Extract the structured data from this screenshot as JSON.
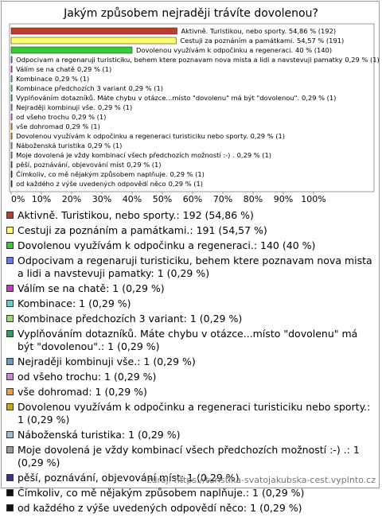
{
  "chart_data": {
    "type": "hbar",
    "title": "Jakým způsobem nejraději trávíte dovolenou?",
    "categories": [
      "Aktivně. Turistikou, nebo sporty.",
      "Cestuji za poznáním a památkami.",
      "Dovolenou využívám k odpočinku a regeneraci.",
      "Odpocivam a regenaruji turisticiku, behem ktere poznavam nova mista a lidi a navstevuji pamatky",
      "Válím se na chatě",
      "Kombinace",
      "Kombinace předchozích 3 variant",
      "Vyplňováním dotazníků. Máte chybu v otázce...místo \"dovolenu\" má být \"dovolenou\".",
      "Nejraději kombinuji vše.",
      "od všeho trochu",
      "vše dohromad",
      "Dovolenou využívám k odpočinku a regeneraci turisticiku nebo sporty.",
      "Náboženská turistika",
      "Moje dovolená je vždy kombinací všech předchozích možností :-) .",
      "pěší, poznávání, objevování míst",
      "Čímkoliv, co mě nějakým způsobem naplňuje.",
      "od každého z výše uvedených odpovědí něco"
    ],
    "values": [
      54.86,
      54.57,
      40,
      0.29,
      0.29,
      0.29,
      0.29,
      0.29,
      0.29,
      0.29,
      0.29,
      0.29,
      0.29,
      0.29,
      0.29,
      0.29,
      0.29
    ],
    "value_labels": [
      "54,86 % (192)",
      "54,57 % (191)",
      "40 % (140)",
      "0,29 % (1)",
      "0,29 % (1)",
      "0,29 % (1)",
      "0,29 % (1)",
      "0,29 % (1)",
      "0,29 % (1)",
      "0,29 % (1)",
      "0,29 % (1)",
      "0,29 % (1)",
      "0,29 % (1)",
      "0,29 % (1)",
      "0,29 % (1)",
      "0,29 % (1)",
      "0,29 % (1)"
    ],
    "legend_labels": [
      "Aktivně. Turistikou, nebo sporty.: 192 (54,86 %)",
      "Cestuji za poznáním a památkami.: 191 (54,57 %)",
      "Dovolenou využívám k odpočinku a regeneraci.: 140 (40 %)",
      "Odpocivam a regenaruji turisticiku, behem ktere poznavam nova mista a lidi a navstevuji pamatky: 1 (0,29 %)",
      "Válím se na chatě: 1 (0,29 %)",
      "Kombinace: 1 (0,29 %)",
      "Kombinace předchozích 3 variant: 1 (0,29 %)",
      "Vyplňováním dotazníků. Máte chybu v otázce...místo \"dovolenu\" má být \"dovolenou\".: 1 (0,29 %)",
      "Nejraději kombinuji vše.: 1 (0,29 %)",
      "od všeho trochu: 1 (0,29 %)",
      "vše dohromad: 1 (0,29 %)",
      "Dovolenou využívám k odpočinku a regeneraci turisticiku nebo sporty.: 1 (0,29 %)",
      "Náboženská turistika: 1 (0,29 %)",
      "Moje dovolená je vždy kombinací všech předchozích možností :-) .: 1 (0,29 %)",
      "pěší, poznávání, objevování míst: 1 (0,29 %)",
      "Čímkoliv, co mě nějakým způsobem naplňuje.: 1 (0,29 %)",
      "od každého z výše uvedených odpovědí něco: 1 (0,29 %)"
    ],
    "colors": [
      "#c0392b",
      "#ffff66",
      "#33cc33",
      "#6677ee",
      "#cc33cc",
      "#66cccc",
      "#99dd66",
      "#339966",
      "#6699cc",
      "#cc88cc",
      "#ff9933",
      "#ccaa00",
      "#99bbdd",
      "#999999",
      "#333399",
      "#111111",
      "#111111"
    ],
    "xlim": [
      0,
      120
    ],
    "xticks": [
      {
        "value": 0,
        "label": "0%"
      },
      {
        "value": 10,
        "label": "10%"
      },
      {
        "value": 20,
        "label": "20%"
      },
      {
        "value": 30,
        "label": "30%"
      },
      {
        "value": 40,
        "label": "40%"
      },
      {
        "value": 50,
        "label": "50%"
      },
      {
        "value": 60,
        "label": "60%"
      },
      {
        "value": 70,
        "label": "70%"
      },
      {
        "value": 80,
        "label": "80%"
      },
      {
        "value": 90,
        "label": "90%"
      },
      {
        "value": 100,
        "label": "100%"
      }
    ],
    "source": "zdroj: https://turistika-svatojakubska-cest.vyplnto.cz"
  }
}
